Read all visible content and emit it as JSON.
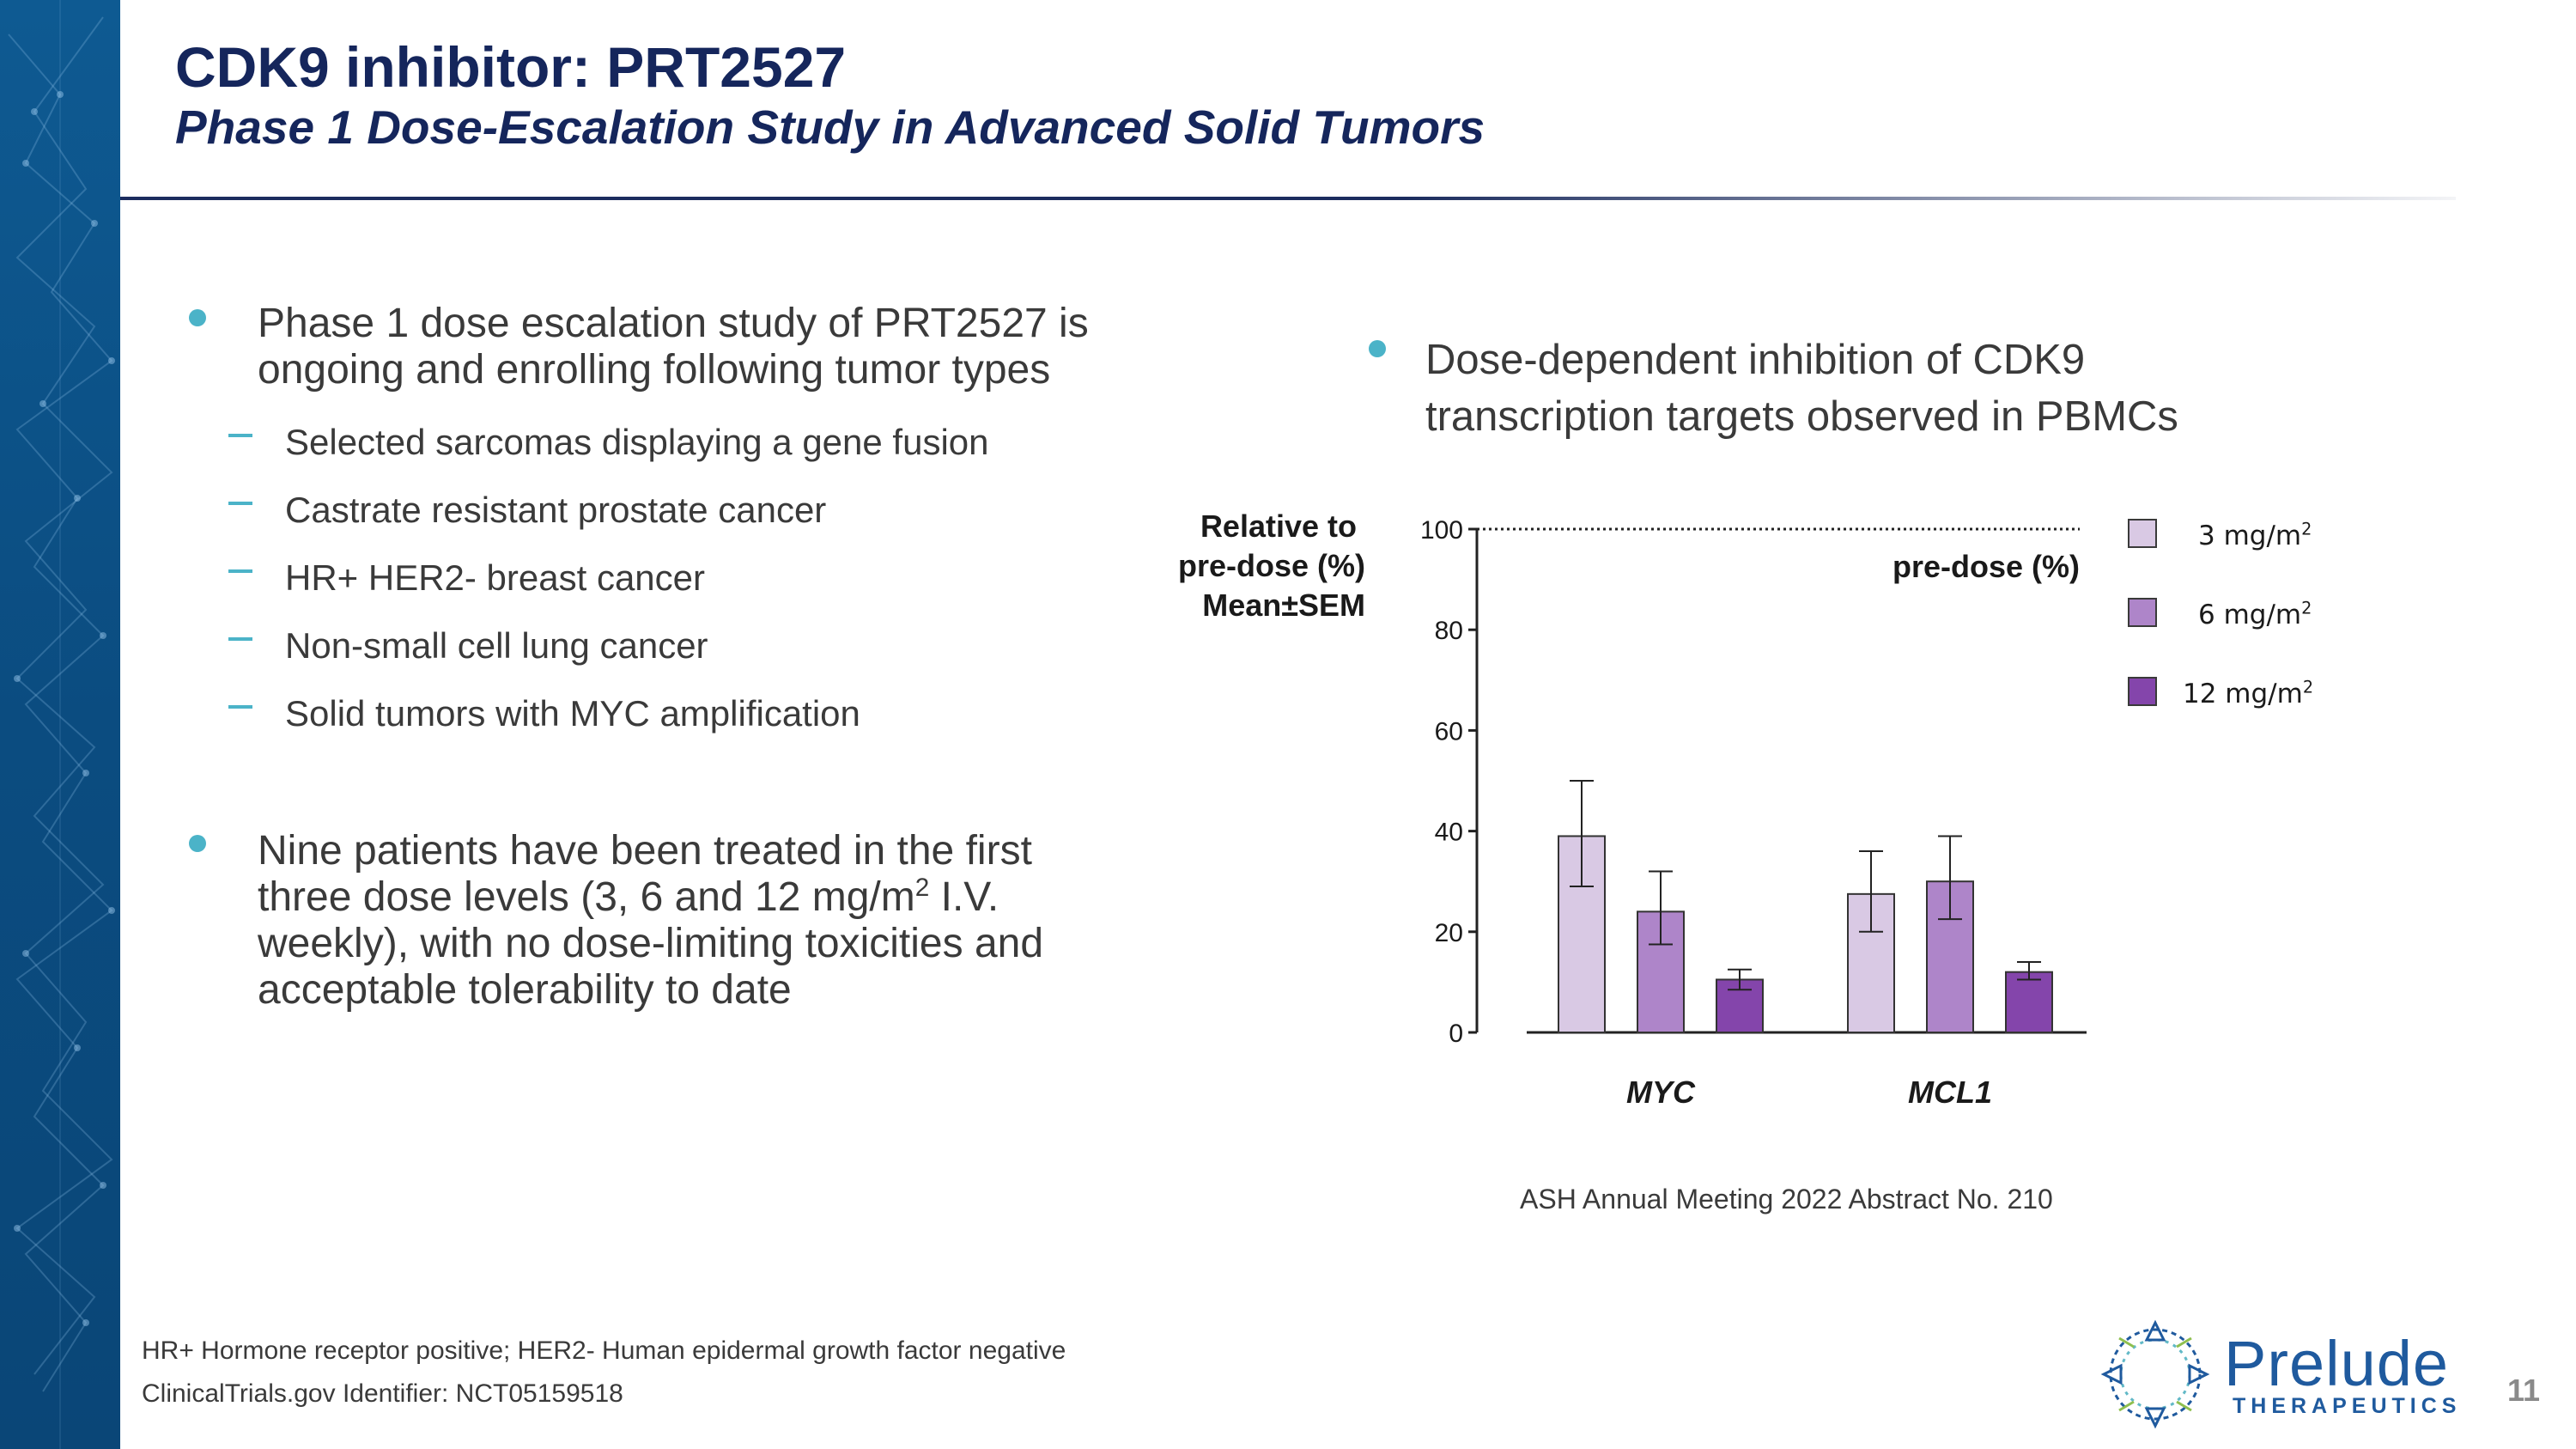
{
  "slide": {
    "title": "CDK9 inhibitor: PRT2527",
    "subtitle": "Phase 1 Dose-Escalation Study in Advanced Solid Tumors",
    "page_number": "11"
  },
  "left_column": {
    "bullet1_lines": [
      "Phase 1 dose escalation study of PRT2527 is",
      "ongoing and enrolling following tumor types"
    ],
    "sub_items": [
      "Selected sarcomas displaying a gene fusion",
      "Castrate resistant prostate cancer",
      "HR+ HER2- breast cancer",
      "Non-small cell lung cancer",
      "Solid tumors with MYC amplification"
    ],
    "bullet2_line1": "Nine patients have been treated in the first",
    "bullet2_line2_before": "three dose levels (3, 6 and 12 mg/m",
    "bullet2_line2_sup": "2",
    "bullet2_line2_after": " I.V.",
    "bullet2_line3": "weekly), with no dose-limiting toxicities and",
    "bullet2_line4": "acceptable tolerability to date"
  },
  "right_column": {
    "bullet_lines": [
      "Dose-dependent inhibition of CDK9",
      "transcription targets observed in PBMCs"
    ],
    "y_axis_title_lines": [
      "Relative to",
      "pre-dose (%)",
      "Mean±SEM"
    ],
    "reference_line_label": "pre-dose (%)",
    "citation": "ASH Annual Meeting 2022  Abstract No. 210"
  },
  "legend": [
    {
      "unit": "3 mg/m",
      "sup": "2"
    },
    {
      "unit": "6 mg/m",
      "sup": "2"
    },
    {
      "unit": "12 mg/m",
      "sup": "2"
    }
  ],
  "chart_data": {
    "type": "bar",
    "title": "",
    "ylabel": "Relative to pre-dose (%) Mean±SEM",
    "xlabel": "",
    "ylim": [
      0,
      100
    ],
    "yticks": [
      0,
      20,
      40,
      60,
      80,
      100
    ],
    "reference_line": {
      "value": 100,
      "label": "pre-dose (%)",
      "style": "dotted"
    },
    "categories": [
      "MYC",
      "MCL1"
    ],
    "series": [
      {
        "name": "3 mg/m²",
        "color": "#d9c9e4",
        "values": [
          39,
          27.5
        ],
        "error_low": [
          29,
          20
        ],
        "error_high": [
          50,
          36
        ]
      },
      {
        "name": "6 mg/m²",
        "color": "#ae85c9",
        "values": [
          24,
          30
        ],
        "error_low": [
          17.5,
          22.5
        ],
        "error_high": [
          32,
          39
        ]
      },
      {
        "name": "12 mg/m²",
        "color": "#8445ab",
        "values": [
          10.5,
          12
        ],
        "error_low": [
          8.5,
          10.5
        ],
        "error_high": [
          12.5,
          14
        ]
      }
    ]
  },
  "footnotes": {
    "line1": "HR+ Hormone receptor positive; HER2- Human epidermal growth factor negative",
    "line2": "ClinicalTrials.gov Identifier: NCT05159518"
  },
  "logo": {
    "name": "Prelude",
    "tagline": "THERAPEUTICS"
  },
  "colors": {
    "title": "#15265c",
    "bullet_accent": "#4bb3c8",
    "left_band": "#0b4c80",
    "logo": "#1f5a9e"
  }
}
